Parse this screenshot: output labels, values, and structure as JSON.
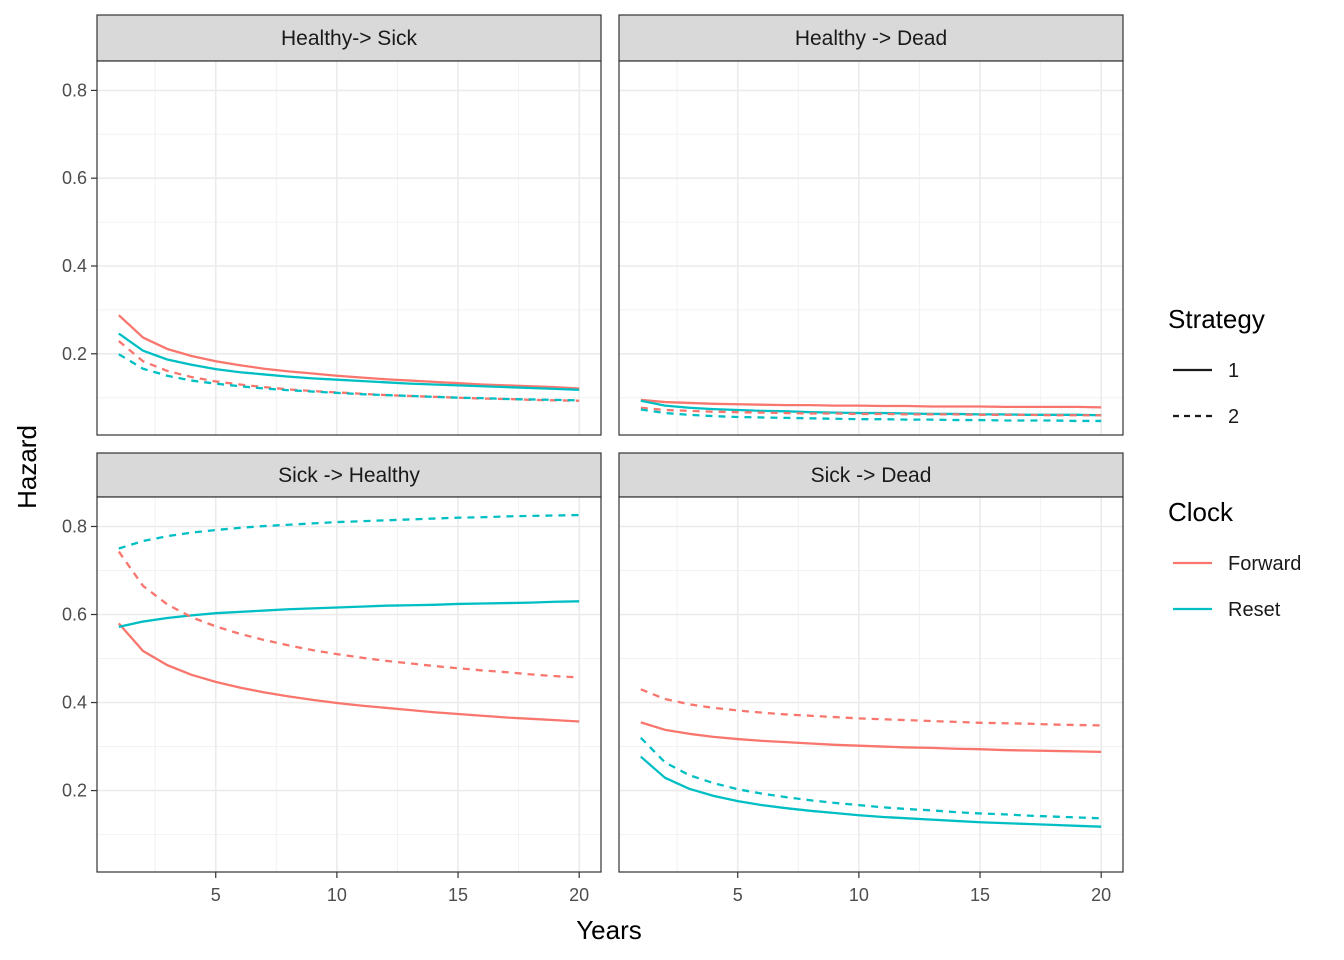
{
  "chart_data": {
    "type": "line",
    "xlabel": "Years",
    "ylabel": "Hazard",
    "xlim": [
      0.1,
      20.9
    ],
    "ylim": [
      0.015,
      0.867
    ],
    "x_ticks": [
      5,
      10,
      15,
      20
    ],
    "y_ticks": [
      0.2,
      0.4,
      0.6,
      0.8
    ],
    "grid": true,
    "legend_position": "right",
    "legends": {
      "strategy": {
        "title": "Strategy",
        "items": [
          {
            "label": "1",
            "dash": "solid"
          },
          {
            "label": "2",
            "dash": "dashed"
          }
        ]
      },
      "clock": {
        "title": "Clock",
        "items": [
          {
            "label": "Forward",
            "color": "#F8766D"
          },
          {
            "label": "Reset",
            "color": "#00BFC4"
          }
        ]
      }
    },
    "x": [
      1,
      2,
      3,
      4,
      5,
      6,
      7,
      8,
      9,
      10,
      11,
      12,
      13,
      14,
      15,
      16,
      17,
      18,
      19,
      20
    ],
    "panels": [
      {
        "title": "Healthy-> Sick",
        "series": [
          {
            "clock": "Forward",
            "strategy": "1",
            "values": [
              0.288,
              0.237,
              0.211,
              0.195,
              0.183,
              0.174,
              0.166,
              0.16,
              0.155,
              0.15,
              0.146,
              0.142,
              0.139,
              0.136,
              0.133,
              0.13,
              0.128,
              0.126,
              0.124,
              0.121
            ]
          },
          {
            "clock": "Reset",
            "strategy": "1",
            "values": [
              0.246,
              0.207,
              0.187,
              0.175,
              0.165,
              0.158,
              0.153,
              0.148,
              0.144,
              0.141,
              0.138,
              0.135,
              0.132,
              0.13,
              0.128,
              0.126,
              0.124,
              0.122,
              0.12,
              0.118
            ]
          },
          {
            "clock": "Forward",
            "strategy": "2",
            "values": [
              0.229,
              0.183,
              0.161,
              0.147,
              0.137,
              0.13,
              0.124,
              0.119,
              0.115,
              0.112,
              0.109,
              0.106,
              0.104,
              0.102,
              0.1,
              0.098,
              0.097,
              0.095,
              0.094,
              0.093
            ]
          },
          {
            "clock": "Reset",
            "strategy": "2",
            "values": [
              0.199,
              0.166,
              0.15,
              0.139,
              0.132,
              0.126,
              0.121,
              0.117,
              0.114,
              0.111,
              0.108,
              0.106,
              0.104,
              0.102,
              0.1,
              0.099,
              0.097,
              0.096,
              0.095,
              0.094
            ]
          }
        ]
      },
      {
        "title": "Healthy -> Dead",
        "series": [
          {
            "clock": "Forward",
            "strategy": "1",
            "values": [
              0.095,
              0.09,
              0.088,
              0.086,
              0.085,
              0.084,
              0.083,
              0.083,
              0.082,
              0.082,
              0.081,
              0.081,
              0.08,
              0.08,
              0.08,
              0.079,
              0.079,
              0.079,
              0.079,
              0.078
            ]
          },
          {
            "clock": "Reset",
            "strategy": "1",
            "values": [
              0.093,
              0.082,
              0.077,
              0.074,
              0.072,
              0.07,
              0.069,
              0.067,
              0.066,
              0.065,
              0.065,
              0.064,
              0.063,
              0.063,
              0.062,
              0.062,
              0.061,
              0.061,
              0.061,
              0.06
            ]
          },
          {
            "clock": "Forward",
            "strategy": "2",
            "values": [
              0.077,
              0.072,
              0.07,
              0.068,
              0.067,
              0.066,
              0.065,
              0.064,
              0.064,
              0.063,
              0.063,
              0.062,
              0.062,
              0.062,
              0.061,
              0.061,
              0.061,
              0.06,
              0.06,
              0.06
            ]
          },
          {
            "clock": "Reset",
            "strategy": "2",
            "values": [
              0.073,
              0.065,
              0.061,
              0.058,
              0.056,
              0.055,
              0.054,
              0.053,
              0.052,
              0.051,
              0.051,
              0.05,
              0.05,
              0.049,
              0.049,
              0.048,
              0.048,
              0.048,
              0.047,
              0.047
            ]
          }
        ]
      },
      {
        "title": "Sick -> Healthy",
        "series": [
          {
            "clock": "Forward",
            "strategy": "1",
            "values": [
              0.58,
              0.517,
              0.485,
              0.463,
              0.447,
              0.434,
              0.423,
              0.414,
              0.406,
              0.399,
              0.393,
              0.388,
              0.383,
              0.378,
              0.374,
              0.37,
              0.366,
              0.363,
              0.36,
              0.357
            ]
          },
          {
            "clock": "Reset",
            "strategy": "1",
            "values": [
              0.572,
              0.584,
              0.592,
              0.598,
              0.603,
              0.606,
              0.609,
              0.612,
              0.614,
              0.616,
              0.618,
              0.62,
              0.621,
              0.622,
              0.624,
              0.625,
              0.626,
              0.627,
              0.629,
              0.63
            ]
          },
          {
            "clock": "Forward",
            "strategy": "2",
            "values": [
              0.743,
              0.665,
              0.623,
              0.594,
              0.573,
              0.556,
              0.542,
              0.53,
              0.519,
              0.51,
              0.502,
              0.495,
              0.489,
              0.483,
              0.478,
              0.473,
              0.469,
              0.464,
              0.46,
              0.457
            ]
          },
          {
            "clock": "Reset",
            "strategy": "2",
            "values": [
              0.75,
              0.767,
              0.778,
              0.786,
              0.792,
              0.797,
              0.801,
              0.804,
              0.807,
              0.81,
              0.812,
              0.814,
              0.816,
              0.818,
              0.82,
              0.821,
              0.823,
              0.824,
              0.825,
              0.826
            ]
          }
        ]
      },
      {
        "title": "Sick -> Dead",
        "series": [
          {
            "clock": "Forward",
            "strategy": "1",
            "values": [
              0.355,
              0.338,
              0.329,
              0.322,
              0.317,
              0.313,
              0.31,
              0.307,
              0.304,
              0.302,
              0.3,
              0.298,
              0.297,
              0.295,
              0.294,
              0.292,
              0.291,
              0.29,
              0.289,
              0.288
            ]
          },
          {
            "clock": "Reset",
            "strategy": "1",
            "values": [
              0.277,
              0.229,
              0.204,
              0.188,
              0.176,
              0.167,
              0.16,
              0.154,
              0.149,
              0.144,
              0.14,
              0.137,
              0.134,
              0.131,
              0.128,
              0.126,
              0.124,
              0.122,
              0.12,
              0.118
            ]
          },
          {
            "clock": "Forward",
            "strategy": "2",
            "values": [
              0.43,
              0.408,
              0.396,
              0.388,
              0.382,
              0.377,
              0.373,
              0.37,
              0.367,
              0.364,
              0.362,
              0.36,
              0.358,
              0.356,
              0.354,
              0.353,
              0.352,
              0.35,
              0.349,
              0.348
            ]
          },
          {
            "clock": "Reset",
            "strategy": "2",
            "values": [
              0.32,
              0.264,
              0.235,
              0.217,
              0.203,
              0.193,
              0.185,
              0.178,
              0.172,
              0.167,
              0.162,
              0.158,
              0.155,
              0.151,
              0.148,
              0.146,
              0.143,
              0.141,
              0.139,
              0.137
            ]
          }
        ]
      }
    ]
  }
}
